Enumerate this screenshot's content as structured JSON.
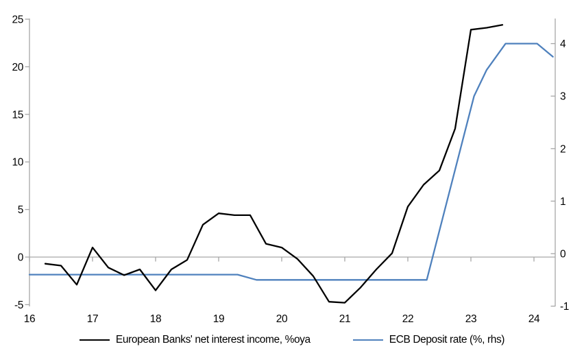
{
  "page": {
    "background": "#ffffff"
  },
  "chart_data": {
    "type": "line",
    "title": "",
    "legend_position": "bottom",
    "grid": "zero-line-only",
    "x_axis": {
      "label": "",
      "tick_labels": [
        "16",
        "17",
        "18",
        "19",
        "20",
        "21",
        "22",
        "23",
        "24"
      ],
      "tick_values": [
        16,
        17,
        18,
        19,
        20,
        21,
        22,
        23,
        24
      ],
      "min": 16,
      "max": 24.35
    },
    "y_axis_left": {
      "label": "",
      "ticks": [
        25,
        20,
        15,
        10,
        5,
        0,
        -5
      ],
      "min": -5,
      "max": 25
    },
    "y_axis_right": {
      "label": "",
      "ticks": [
        4,
        3,
        2,
        1,
        0,
        -1
      ],
      "min": -1,
      "max": 4.5
    },
    "series": [
      {
        "name": "European Banks' net interest income, %oya",
        "axis": "left",
        "color": "#000000",
        "points": [
          [
            16.25,
            -0.7
          ],
          [
            16.5,
            -0.9
          ],
          [
            16.75,
            -2.9
          ],
          [
            17.0,
            1.0
          ],
          [
            17.25,
            -1.1
          ],
          [
            17.5,
            -1.9
          ],
          [
            17.75,
            -1.3
          ],
          [
            18.0,
            -3.5
          ],
          [
            18.25,
            -1.3
          ],
          [
            18.5,
            -0.3
          ],
          [
            18.75,
            3.4
          ],
          [
            19.0,
            4.6
          ],
          [
            19.25,
            4.4
          ],
          [
            19.5,
            4.4
          ],
          [
            19.75,
            1.4
          ],
          [
            20.0,
            1.0
          ],
          [
            20.25,
            -0.2
          ],
          [
            20.5,
            -2.0
          ],
          [
            20.75,
            -4.7
          ],
          [
            21.0,
            -4.8
          ],
          [
            21.25,
            -3.2
          ],
          [
            21.5,
            -1.3
          ],
          [
            21.75,
            0.4
          ],
          [
            22.0,
            5.3
          ],
          [
            22.25,
            7.6
          ],
          [
            22.5,
            9.1
          ],
          [
            22.75,
            13.5
          ],
          [
            23.0,
            23.9
          ],
          [
            23.25,
            24.1
          ],
          [
            23.5,
            24.4
          ]
        ]
      },
      {
        "name": "ECB Deposit rate (%, rhs)",
        "axis": "right",
        "color": "#4F81BD",
        "points": [
          [
            16.0,
            -0.4
          ],
          [
            19.3,
            -0.4
          ],
          [
            19.6,
            -0.5
          ],
          [
            22.3,
            -0.5
          ],
          [
            23.05,
            3.0
          ],
          [
            23.25,
            3.5
          ],
          [
            23.55,
            4.0
          ],
          [
            24.05,
            4.0
          ],
          [
            24.3,
            3.75
          ]
        ]
      }
    ],
    "style": {
      "axis_color": "#A6A6A6",
      "zero_line_color": "#A6A6A6",
      "text_color": "#000000"
    }
  }
}
